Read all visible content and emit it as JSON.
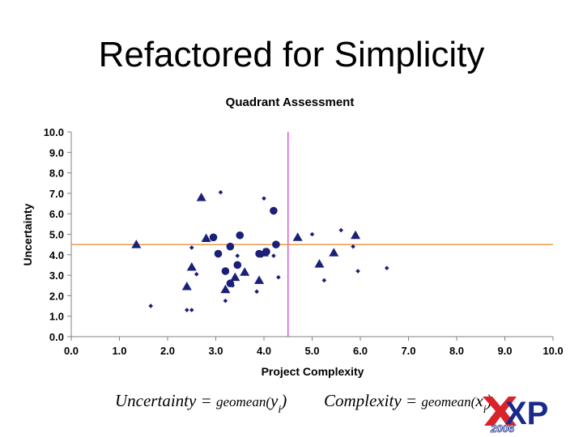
{
  "slide": {
    "title": "Refactored for Simplicity"
  },
  "formulas": {
    "uncertainty": {
      "lhs": "Uncertainty",
      "eq": "=",
      "fn": "geomean(",
      "var": "y",
      "sub": "i",
      "close": ")"
    },
    "complexity": {
      "lhs": "Complexity",
      "eq": "=",
      "fn": "geomean(",
      "var": "x",
      "sub": "i",
      "close": ")"
    }
  },
  "logo": {
    "text": "XP",
    "year": "2006"
  },
  "colors": {
    "marker": "#1a1f78",
    "vertical_line": "#cc33cc",
    "horizontal_line": "#e8903a",
    "axis": "#808080"
  },
  "chart_data": {
    "type": "scatter",
    "title": "Quadrant Assessment",
    "xlabel": "Project Complexity",
    "ylabel": "Uncertainty",
    "xlim": [
      0,
      10
    ],
    "ylim": [
      0,
      10
    ],
    "xticks": [
      "0.0",
      "1.0",
      "2.0",
      "3.0",
      "4.0",
      "5.0",
      "6.0",
      "7.0",
      "8.0",
      "9.0",
      "10.0"
    ],
    "yticks": [
      "0.0",
      "1.0",
      "2.0",
      "3.0",
      "4.0",
      "5.0",
      "6.0",
      "7.0",
      "8.0",
      "9.0",
      "10.0"
    ],
    "grid": false,
    "reference_lines": {
      "x": 4.5,
      "y": 4.5
    },
    "series": [
      {
        "marker": "triangle",
        "points": [
          [
            1.35,
            4.5
          ],
          [
            2.4,
            2.45
          ],
          [
            2.5,
            3.4
          ],
          [
            2.7,
            6.8
          ],
          [
            2.8,
            4.8
          ],
          [
            3.2,
            2.3
          ],
          [
            3.4,
            2.9
          ],
          [
            3.6,
            3.15
          ],
          [
            3.9,
            2.75
          ],
          [
            4.0,
            4.1
          ],
          [
            4.7,
            4.85
          ],
          [
            5.15,
            3.55
          ],
          [
            5.45,
            4.1
          ],
          [
            5.9,
            4.95
          ]
        ]
      },
      {
        "marker": "circle",
        "points": [
          [
            2.95,
            4.85
          ],
          [
            3.05,
            4.05
          ],
          [
            3.2,
            3.2
          ],
          [
            3.3,
            2.6
          ],
          [
            3.3,
            4.4
          ],
          [
            3.45,
            3.5
          ],
          [
            3.5,
            4.95
          ],
          [
            3.9,
            4.05
          ],
          [
            4.05,
            4.15
          ],
          [
            4.2,
            6.15
          ],
          [
            4.25,
            4.5
          ]
        ]
      },
      {
        "marker": "diamond",
        "points": [
          [
            1.65,
            1.5
          ],
          [
            2.4,
            1.3
          ],
          [
            2.5,
            1.3
          ],
          [
            2.5,
            4.35
          ],
          [
            2.6,
            3.05
          ],
          [
            3.1,
            7.05
          ],
          [
            3.2,
            1.75
          ],
          [
            3.35,
            2.5
          ],
          [
            3.45,
            3.95
          ],
          [
            3.85,
            2.2
          ],
          [
            3.95,
            3.95
          ],
          [
            4.0,
            6.75
          ],
          [
            4.2,
            3.95
          ],
          [
            4.3,
            2.9
          ],
          [
            5.0,
            5.0
          ],
          [
            5.25,
            2.75
          ],
          [
            5.6,
            5.2
          ],
          [
            5.85,
            4.4
          ],
          [
            5.95,
            3.2
          ],
          [
            6.55,
            3.35
          ]
        ]
      }
    ]
  }
}
